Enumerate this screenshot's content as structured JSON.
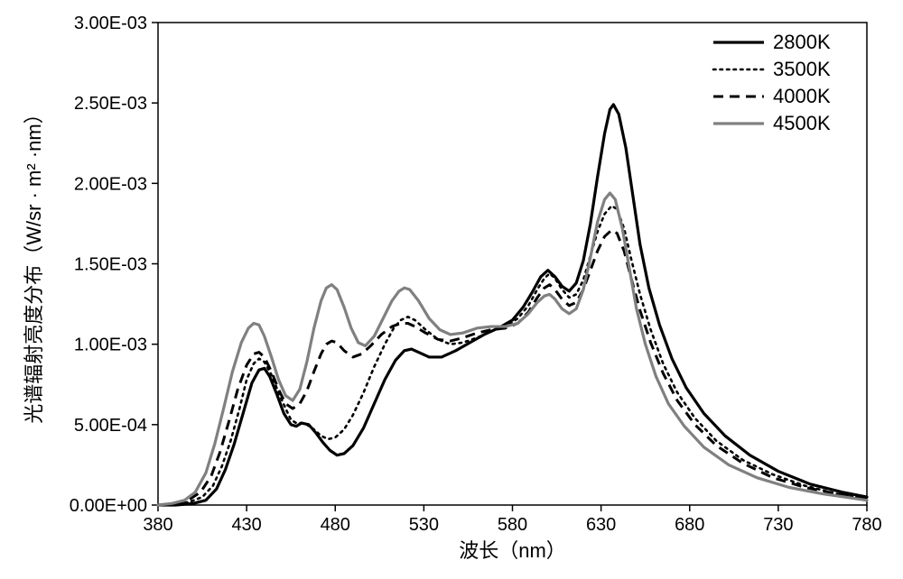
{
  "chart": {
    "type": "line",
    "background_color": "#ffffff",
    "plot_border_color": "#000000",
    "plot_border_width": 1.5,
    "x_axis": {
      "label": "波长（nm）",
      "min": 380,
      "max": 780,
      "tick_step": 50,
      "ticks": [
        380,
        430,
        480,
        530,
        580,
        630,
        680,
        730,
        780
      ],
      "label_fontsize": 22,
      "tick_fontsize": 20
    },
    "y_axis": {
      "label": "光谱辐射亮度分布（W/sr · m² ·nm）",
      "min": 0,
      "max": 0.003,
      "tick_step": 0.0005,
      "tick_labels": [
        "0.00E+00",
        "5.00E-04",
        "1.00E-03",
        "1.50E-03",
        "2.00E-03",
        "2.50E-03",
        "3.00E-03"
      ],
      "tick_values": [
        0,
        0.0005,
        0.001,
        0.0015,
        0.002,
        0.0025,
        0.003
      ],
      "label_fontsize": 22,
      "tick_fontsize": 20
    },
    "legend": {
      "position": "top-right",
      "text_fontsize": 22,
      "line_length": 56
    },
    "series": [
      {
        "name": "2800K",
        "color": "#000000",
        "width": 3.2,
        "dash": "none",
        "data": [
          [
            380,
            0
          ],
          [
            390,
            0
          ],
          [
            400,
            1e-05
          ],
          [
            407,
            3e-05
          ],
          [
            413,
            0.0001
          ],
          [
            418,
            0.00022
          ],
          [
            423,
            0.00038
          ],
          [
            428,
            0.00057
          ],
          [
            433,
            0.00076
          ],
          [
            437,
            0.00084
          ],
          [
            440,
            0.00085
          ],
          [
            443,
            0.0008
          ],
          [
            447,
            0.00069
          ],
          [
            451,
            0.00057
          ],
          [
            455,
            0.0005
          ],
          [
            458,
            0.00049
          ],
          [
            461,
            0.00051
          ],
          [
            465,
            0.0005
          ],
          [
            469,
            0.00045
          ],
          [
            473,
            0.00039
          ],
          [
            477,
            0.00034
          ],
          [
            481,
            0.00031
          ],
          [
            485,
            0.00032
          ],
          [
            490,
            0.00037
          ],
          [
            496,
            0.00048
          ],
          [
            502,
            0.00063
          ],
          [
            508,
            0.00078
          ],
          [
            514,
            0.0009
          ],
          [
            519,
            0.00096
          ],
          [
            523,
            0.00097
          ],
          [
            527,
            0.00095
          ],
          [
            533,
            0.00092
          ],
          [
            540,
            0.00092
          ],
          [
            548,
            0.00096
          ],
          [
            556,
            0.00101
          ],
          [
            564,
            0.00106
          ],
          [
            572,
            0.0011
          ],
          [
            580,
            0.00115
          ],
          [
            586,
            0.00123
          ],
          [
            591,
            0.00132
          ],
          [
            596,
            0.00142
          ],
          [
            600,
            0.00146
          ],
          [
            604,
            0.00142
          ],
          [
            608,
            0.00136
          ],
          [
            612,
            0.00133
          ],
          [
            616,
            0.00138
          ],
          [
            620,
            0.00152
          ],
          [
            624,
            0.00175
          ],
          [
            628,
            0.00204
          ],
          [
            632,
            0.00231
          ],
          [
            635,
            0.00246
          ],
          [
            637,
            0.00249
          ],
          [
            640,
            0.00243
          ],
          [
            644,
            0.00222
          ],
          [
            648,
            0.00192
          ],
          [
            652,
            0.00162
          ],
          [
            657,
            0.00135
          ],
          [
            663,
            0.00112
          ],
          [
            670,
            0.00091
          ],
          [
            678,
            0.00073
          ],
          [
            688,
            0.00057
          ],
          [
            700,
            0.00043
          ],
          [
            714,
            0.00031
          ],
          [
            730,
            0.00021
          ],
          [
            748,
            0.00013
          ],
          [
            766,
            8e-05
          ],
          [
            780,
            5e-05
          ]
        ]
      },
      {
        "name": "3500K",
        "color": "#000000",
        "width": 2.6,
        "dash": "dot",
        "dash_pattern": "2.5 5",
        "data": [
          [
            380,
            0
          ],
          [
            390,
            5e-06
          ],
          [
            398,
            2e-05
          ],
          [
            405,
            5e-05
          ],
          [
            411,
            0.00012
          ],
          [
            416,
            0.00024
          ],
          [
            421,
            0.0004
          ],
          [
            426,
            0.0006
          ],
          [
            430,
            0.00078
          ],
          [
            434,
            0.00088
          ],
          [
            437,
            0.00091
          ],
          [
            440,
            0.00089
          ],
          [
            444,
            0.00081
          ],
          [
            448,
            0.0007
          ],
          [
            452,
            0.0006
          ],
          [
            455,
            0.00053
          ],
          [
            458,
            0.00051
          ],
          [
            461,
            0.00051
          ],
          [
            464,
            0.0005
          ],
          [
            468,
            0.00047
          ],
          [
            472,
            0.00043
          ],
          [
            476,
            0.00041
          ],
          [
            480,
            0.00042
          ],
          [
            485,
            0.00047
          ],
          [
            490,
            0.00056
          ],
          [
            496,
            0.0007
          ],
          [
            502,
            0.00086
          ],
          [
            508,
            0.001
          ],
          [
            513,
            0.0011
          ],
          [
            517,
            0.00115
          ],
          [
            521,
            0.00117
          ],
          [
            525,
            0.00115
          ],
          [
            531,
            0.00109
          ],
          [
            538,
            0.00103
          ],
          [
            545,
            0.001
          ],
          [
            552,
            0.00101
          ],
          [
            560,
            0.00104
          ],
          [
            568,
            0.00108
          ],
          [
            576,
            0.00111
          ],
          [
            583,
            0.00116
          ],
          [
            589,
            0.00124
          ],
          [
            594,
            0.00134
          ],
          [
            598,
            0.00141
          ],
          [
            601,
            0.00144
          ],
          [
            604,
            0.00141
          ],
          [
            608,
            0.00134
          ],
          [
            612,
            0.00129
          ],
          [
            616,
            0.00131
          ],
          [
            620,
            0.0014
          ],
          [
            624,
            0.00155
          ],
          [
            628,
            0.0017
          ],
          [
            632,
            0.00181
          ],
          [
            636,
            0.00186
          ],
          [
            639,
            0.00184
          ],
          [
            643,
            0.00172
          ],
          [
            647,
            0.00153
          ],
          [
            652,
            0.00131
          ],
          [
            658,
            0.00109
          ],
          [
            665,
            0.00088
          ],
          [
            673,
            0.0007
          ],
          [
            683,
            0.00054
          ],
          [
            695,
            0.0004
          ],
          [
            710,
            0.00028
          ],
          [
            727,
            0.00019
          ],
          [
            745,
            0.00012
          ],
          [
            763,
            7e-05
          ],
          [
            780,
            4e-05
          ]
        ]
      },
      {
        "name": "4000K",
        "color": "#000000",
        "width": 3.0,
        "dash": "dash",
        "dash_pattern": "11 7",
        "data": [
          [
            380,
            0
          ],
          [
            390,
            1e-05
          ],
          [
            397,
            3e-05
          ],
          [
            404,
            8e-05
          ],
          [
            410,
            0.00018
          ],
          [
            415,
            0.00033
          ],
          [
            420,
            0.00052
          ],
          [
            425,
            0.00072
          ],
          [
            430,
            0.00087
          ],
          [
            434,
            0.00094
          ],
          [
            437,
            0.00095
          ],
          [
            440,
            0.00092
          ],
          [
            444,
            0.00083
          ],
          [
            448,
            0.00072
          ],
          [
            452,
            0.00063
          ],
          [
            456,
            0.0006
          ],
          [
            460,
            0.00063
          ],
          [
            464,
            0.00071
          ],
          [
            468,
            0.00083
          ],
          [
            472,
            0.00094
          ],
          [
            475,
            0.001
          ],
          [
            478,
            0.00102
          ],
          [
            481,
            0.00101
          ],
          [
            485,
            0.00096
          ],
          [
            490,
            0.00092
          ],
          [
            495,
            0.00094
          ],
          [
            500,
            0.00099
          ],
          [
            506,
            0.00106
          ],
          [
            512,
            0.00111
          ],
          [
            517,
            0.00113
          ],
          [
            521,
            0.00113
          ],
          [
            525,
            0.00111
          ],
          [
            531,
            0.00107
          ],
          [
            538,
            0.00103
          ],
          [
            545,
            0.00102
          ],
          [
            552,
            0.00104
          ],
          [
            560,
            0.00107
          ],
          [
            568,
            0.00109
          ],
          [
            576,
            0.0011
          ],
          [
            583,
            0.00113
          ],
          [
            589,
            0.0012
          ],
          [
            594,
            0.00129
          ],
          [
            598,
            0.00135
          ],
          [
            601,
            0.00137
          ],
          [
            604,
            0.00134
          ],
          [
            608,
            0.00128
          ],
          [
            612,
            0.00124
          ],
          [
            616,
            0.00126
          ],
          [
            620,
            0.00134
          ],
          [
            624,
            0.00146
          ],
          [
            628,
            0.00158
          ],
          [
            632,
            0.00167
          ],
          [
            636,
            0.00171
          ],
          [
            639,
            0.00169
          ],
          [
            643,
            0.00158
          ],
          [
            647,
            0.00141
          ],
          [
            652,
            0.00121
          ],
          [
            658,
            0.00101
          ],
          [
            665,
            0.00082
          ],
          [
            673,
            0.00065
          ],
          [
            683,
            0.0005
          ],
          [
            695,
            0.00037
          ],
          [
            710,
            0.00026
          ],
          [
            727,
            0.00017
          ],
          [
            745,
            0.00011
          ],
          [
            763,
            7e-05
          ],
          [
            780,
            4e-05
          ]
        ]
      },
      {
        "name": "4500K",
        "color": "#808080",
        "width": 3.2,
        "dash": "none",
        "data": [
          [
            380,
            0
          ],
          [
            388,
            1e-05
          ],
          [
            395,
            3e-05
          ],
          [
            401,
            8e-05
          ],
          [
            407,
            0.0002
          ],
          [
            412,
            0.00038
          ],
          [
            417,
            0.0006
          ],
          [
            422,
            0.00083
          ],
          [
            427,
            0.00101
          ],
          [
            431,
            0.0011
          ],
          [
            434,
            0.00113
          ],
          [
            437,
            0.00112
          ],
          [
            440,
            0.00105
          ],
          [
            444,
            0.00092
          ],
          [
            448,
            0.00078
          ],
          [
            452,
            0.00068
          ],
          [
            456,
            0.00065
          ],
          [
            460,
            0.00072
          ],
          [
            464,
            0.00089
          ],
          [
            468,
            0.0011
          ],
          [
            472,
            0.00127
          ],
          [
            475,
            0.00135
          ],
          [
            478,
            0.00137
          ],
          [
            481,
            0.00134
          ],
          [
            485,
            0.00123
          ],
          [
            489,
            0.0011
          ],
          [
            493,
            0.00101
          ],
          [
            497,
            0.00099
          ],
          [
            502,
            0.00105
          ],
          [
            507,
            0.00116
          ],
          [
            512,
            0.00127
          ],
          [
            516,
            0.00133
          ],
          [
            519,
            0.00135
          ],
          [
            522,
            0.00134
          ],
          [
            527,
            0.00127
          ],
          [
            533,
            0.00116
          ],
          [
            539,
            0.00109
          ],
          [
            545,
            0.00106
          ],
          [
            552,
            0.00107
          ],
          [
            560,
            0.0011
          ],
          [
            568,
            0.00111
          ],
          [
            576,
            0.00111
          ],
          [
            583,
            0.00113
          ],
          [
            589,
            0.00119
          ],
          [
            594,
            0.00126
          ],
          [
            598,
            0.0013
          ],
          [
            601,
            0.00131
          ],
          [
            604,
            0.00128
          ],
          [
            608,
            0.00122
          ],
          [
            612,
            0.00119
          ],
          [
            616,
            0.00122
          ],
          [
            620,
            0.00134
          ],
          [
            624,
            0.00154
          ],
          [
            628,
            0.00176
          ],
          [
            632,
            0.0019
          ],
          [
            635,
            0.00194
          ],
          [
            638,
            0.0019
          ],
          [
            642,
            0.00172
          ],
          [
            646,
            0.00147
          ],
          [
            650,
            0.00122
          ],
          [
            655,
            0.001
          ],
          [
            661,
            0.0008
          ],
          [
            668,
            0.00063
          ],
          [
            677,
            0.00049
          ],
          [
            688,
            0.00036
          ],
          [
            702,
            0.00025
          ],
          [
            718,
            0.00017
          ],
          [
            736,
            0.00011
          ],
          [
            755,
            7e-05
          ],
          [
            780,
            3e-05
          ]
        ]
      }
    ]
  }
}
